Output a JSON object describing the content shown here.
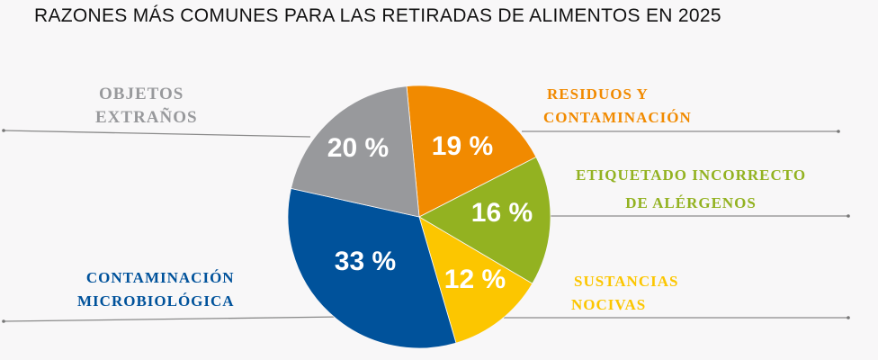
{
  "chart_data": {
    "type": "pie",
    "title": "RAZONES MÁS COMUNES PARA LAS RETIRADAS DE ALIMENTOS EN 2025",
    "slices": [
      {
        "label_lines": [
          "RESIDUOS Y",
          "CONTAMINACIÓN"
        ],
        "value": 19,
        "value_label": "19 %",
        "color": "#f18a00"
      },
      {
        "label_lines": [
          "ETIQUETADO INCORRECTO",
          "DE ALÉRGENOS"
        ],
        "value": 16,
        "value_label": "16 %",
        "color": "#93b221"
      },
      {
        "label_lines": [
          "SUSTANCIAS",
          "NOCIVAS"
        ],
        "value": 12,
        "value_label": "12 %",
        "color": "#fcc600"
      },
      {
        "label_lines": [
          "CONTAMINACIÓN",
          "MICROBIOLÓGICA"
        ],
        "value": 33,
        "value_label": "33 %",
        "color": "#00529b"
      },
      {
        "label_lines": [
          "OBJETOS",
          "EXTRAÑOS"
        ],
        "value": 20,
        "value_label": "20 %",
        "color": "#98999c"
      }
    ],
    "unit": "%"
  }
}
